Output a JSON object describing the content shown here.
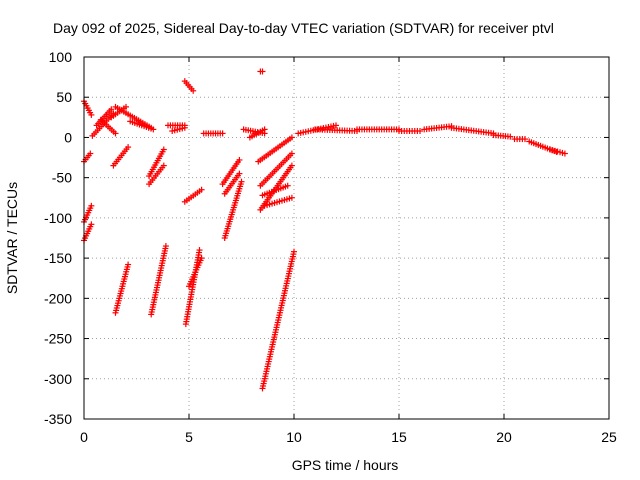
{
  "chart_data": {
    "type": "scatter",
    "title": "Day 092 of 2025, Sidereal Day-to-day VTEC variation (SDTVAR) for receiver ptvl",
    "xlabel": "GPS time / hours",
    "ylabel": "SDTVAR / TECUs",
    "xlim": [
      0,
      25
    ],
    "ylim": [
      -350,
      100
    ],
    "xticks": [
      0,
      5,
      10,
      15,
      20,
      25
    ],
    "yticks": [
      100,
      50,
      0,
      -50,
      -100,
      -150,
      -200,
      -250,
      -300,
      -350
    ],
    "grid": true,
    "marker": "+",
    "color": "#ff0000",
    "segments": [
      {
        "x": [
          0.0,
          0.35
        ],
        "y": [
          45,
          28
        ]
      },
      {
        "x": [
          0.0,
          0.3
        ],
        "y": [
          -30,
          -20
        ]
      },
      {
        "x": [
          0.0,
          0.35
        ],
        "y": [
          -105,
          -85
        ]
      },
      {
        "x": [
          0.0,
          0.35
        ],
        "y": [
          -128,
          -108
        ]
      },
      {
        "x": [
          0.4,
          1.4
        ],
        "y": [
          2,
          30
        ]
      },
      {
        "x": [
          0.6,
          1.3
        ],
        "y": [
          15,
          35
        ]
      },
      {
        "x": [
          0.8,
          1.5
        ],
        "y": [
          22,
          5
        ]
      },
      {
        "x": [
          1.3,
          2.0
        ],
        "y": [
          25,
          38
        ]
      },
      {
        "x": [
          1.5,
          3.2
        ],
        "y": [
          38,
          12
        ]
      },
      {
        "x": [
          2.2,
          3.3
        ],
        "y": [
          20,
          10
        ]
      },
      {
        "x": [
          1.4,
          2.1
        ],
        "y": [
          -35,
          -12
        ]
      },
      {
        "x": [
          1.5,
          2.1
        ],
        "y": [
          -218,
          -158
        ]
      },
      {
        "x": [
          3.1,
          3.8
        ],
        "y": [
          -58,
          -35
        ]
      },
      {
        "x": [
          3.1,
          3.8
        ],
        "y": [
          -48,
          -15
        ]
      },
      {
        "x": [
          3.2,
          3.9
        ],
        "y": [
          -220,
          -135
        ]
      },
      {
        "x": [
          4.0,
          4.8
        ],
        "y": [
          15,
          15
        ]
      },
      {
        "x": [
          4.2,
          4.8
        ],
        "y": [
          8,
          12
        ]
      },
      {
        "x": [
          4.8,
          5.2
        ],
        "y": [
          70,
          58
        ]
      },
      {
        "x": [
          4.8,
          5.6
        ],
        "y": [
          -80,
          -65
        ]
      },
      {
        "x": [
          4.85,
          5.5
        ],
        "y": [
          -232,
          -140
        ]
      },
      {
        "x": [
          5.0,
          5.6
        ],
        "y": [
          -185,
          -150
        ]
      },
      {
        "x": [
          5.7,
          6.6
        ],
        "y": [
          5,
          5
        ]
      },
      {
        "x": [
          6.6,
          7.4
        ],
        "y": [
          -58,
          -28
        ]
      },
      {
        "x": [
          6.7,
          7.4
        ],
        "y": [
          -70,
          -45
        ]
      },
      {
        "x": [
          6.7,
          7.5
        ],
        "y": [
          -125,
          -55
        ]
      },
      {
        "x": [
          7.6,
          8.6
        ],
        "y": [
          10,
          5
        ]
      },
      {
        "x": [
          7.9,
          8.6
        ],
        "y": [
          0,
          10
        ]
      },
      {
        "x": [
          8.4,
          8.5
        ],
        "y": [
          82,
          82
        ]
      },
      {
        "x": [
          8.3,
          9.9
        ],
        "y": [
          -30,
          0
        ]
      },
      {
        "x": [
          8.4,
          9.9
        ],
        "y": [
          -60,
          -20
        ]
      },
      {
        "x": [
          8.4,
          9.9
        ],
        "y": [
          -90,
          -35
        ]
      },
      {
        "x": [
          8.5,
          9.7
        ],
        "y": [
          -72,
          -60
        ]
      },
      {
        "x": [
          8.6,
          9.9
        ],
        "y": [
          -85,
          -75
        ]
      },
      {
        "x": [
          8.5,
          10.0
        ],
        "y": [
          -312,
          -142
        ]
      },
      {
        "x": [
          10.2,
          12.0
        ],
        "y": [
          5,
          15
        ]
      },
      {
        "x": [
          11.0,
          13.0
        ],
        "y": [
          10,
          8
        ]
      },
      {
        "x": [
          13.0,
          15.0
        ],
        "y": [
          10,
          10
        ]
      },
      {
        "x": [
          15.0,
          16.0
        ],
        "y": [
          8,
          8
        ]
      },
      {
        "x": [
          16.2,
          17.5
        ],
        "y": [
          10,
          14
        ]
      },
      {
        "x": [
          17.5,
          19.5
        ],
        "y": [
          12,
          5
        ]
      },
      {
        "x": [
          19.5,
          20.3
        ],
        "y": [
          3,
          1
        ]
      },
      {
        "x": [
          20.5,
          21.0
        ],
        "y": [
          -2,
          -2
        ]
      },
      {
        "x": [
          21.2,
          22.5
        ],
        "y": [
          -5,
          -18
        ]
      },
      {
        "x": [
          22.2,
          22.9
        ],
        "y": [
          -15,
          -20
        ]
      }
    ]
  }
}
